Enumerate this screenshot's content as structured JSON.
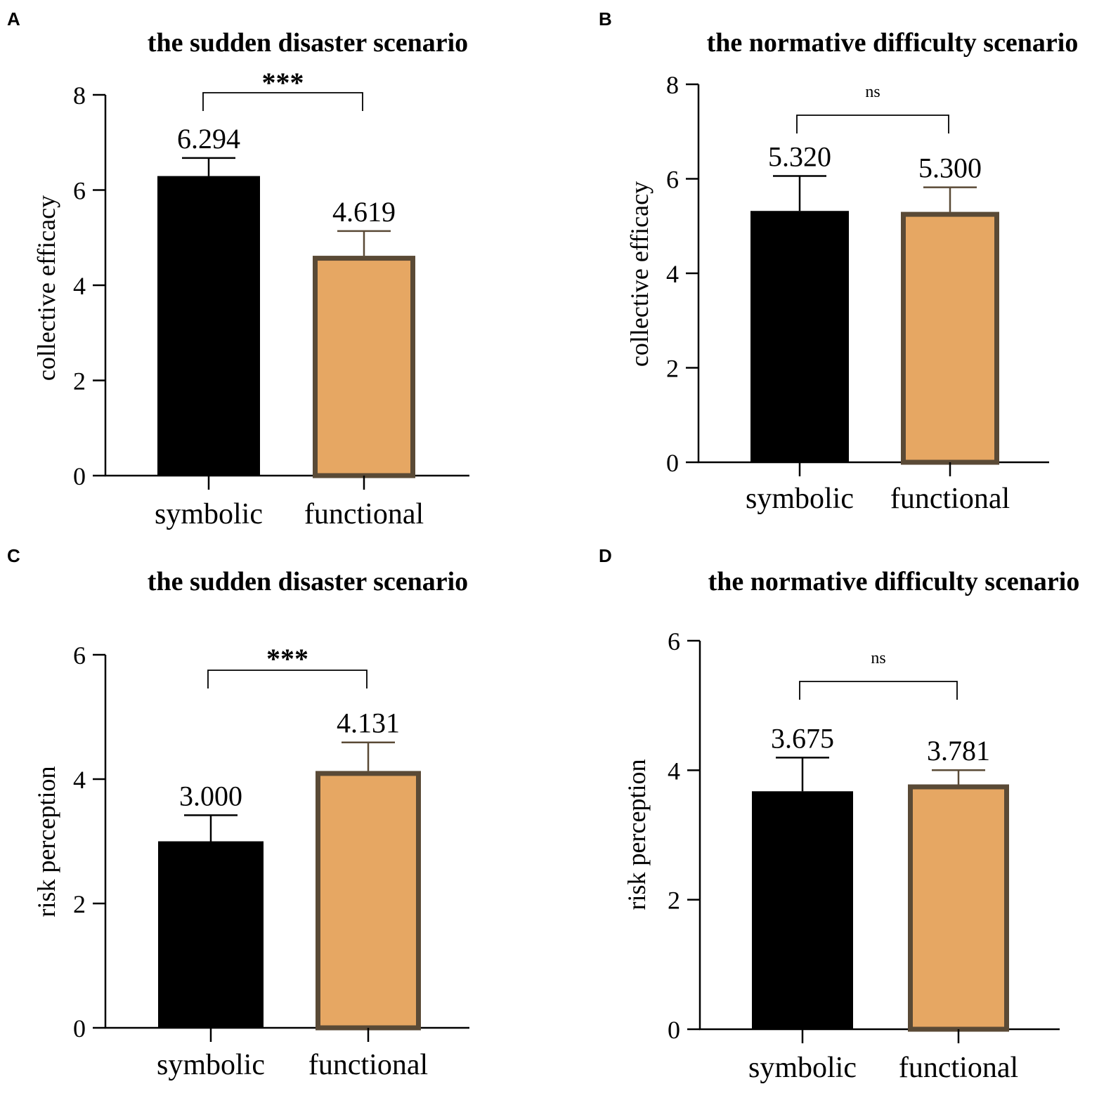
{
  "chart_data": [
    {
      "panel": "A",
      "type": "bar",
      "title": "the sudden disaster scenario",
      "xlabel": "",
      "ylabel": "collective efficacy",
      "ylim": [
        0,
        8
      ],
      "yticks": [
        0,
        2,
        4,
        6,
        8
      ],
      "categories": [
        "symbolic",
        "functional"
      ],
      "values": [
        6.294,
        4.619
      ],
      "value_labels": [
        "6.294",
        "4.619"
      ],
      "error": [
        0.38,
        0.52
      ],
      "colors": [
        "#000000",
        "#E6A763"
      ],
      "significance": "***"
    },
    {
      "panel": "B",
      "type": "bar",
      "title": "the normative difficulty scenario",
      "xlabel": "",
      "ylabel": "collective efficacy",
      "ylim": [
        0,
        8
      ],
      "yticks": [
        0,
        2,
        4,
        6,
        8
      ],
      "categories": [
        "symbolic",
        "functional"
      ],
      "values": [
        5.32,
        5.3
      ],
      "value_labels": [
        "5.320",
        "5.300"
      ],
      "error": [
        0.74,
        0.52
      ],
      "colors": [
        "#000000",
        "#E6A763"
      ],
      "significance": "ns"
    },
    {
      "panel": "C",
      "type": "bar",
      "title": "the sudden disaster scenario",
      "xlabel": "",
      "ylabel": "risk perception",
      "ylim": [
        0,
        6
      ],
      "yticks": [
        0,
        2,
        4,
        6
      ],
      "categories": [
        "symbolic",
        "functional"
      ],
      "values": [
        3.0,
        4.131
      ],
      "value_labels": [
        "3.000",
        "4.131"
      ],
      "error": [
        0.42,
        0.46
      ],
      "colors": [
        "#000000",
        "#E6A763"
      ],
      "significance": "***"
    },
    {
      "panel": "D",
      "type": "bar",
      "title": "the normative difficulty scenario",
      "xlabel": "",
      "ylabel": "risk perception",
      "ylim": [
        0,
        6
      ],
      "yticks": [
        0,
        2,
        4,
        6
      ],
      "categories": [
        "symbolic",
        "functional"
      ],
      "values": [
        3.675,
        3.781
      ],
      "value_labels": [
        "3.675",
        "3.781"
      ],
      "error": [
        0.52,
        0.22
      ],
      "colors": [
        "#000000",
        "#E6A763"
      ],
      "significance": "ns"
    }
  ],
  "colors": {
    "bar_outline": "#5A4A36",
    "axis": "#000000"
  }
}
